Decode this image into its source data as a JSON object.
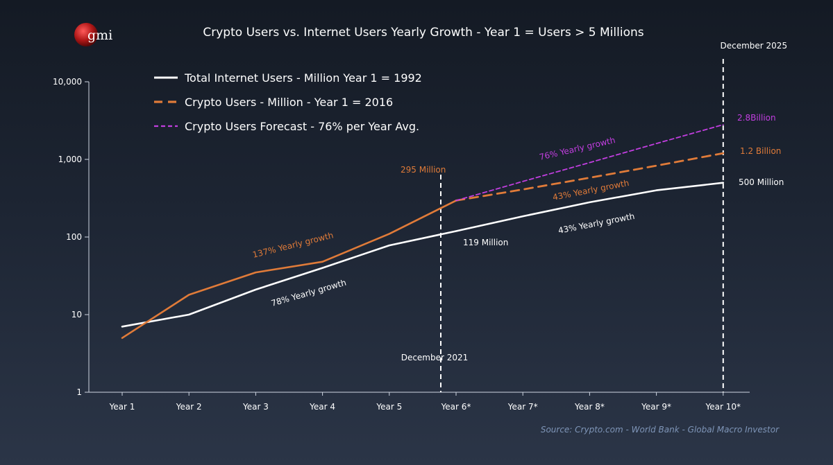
{
  "logo": {
    "text": "gmi"
  },
  "chart_data": {
    "type": "line",
    "title": "Crypto Users vs. Internet Users Yearly Growth - Year 1 = Users > 5 Millions",
    "categories": [
      "Year 1",
      "Year 2",
      "Year 3",
      "Year 4",
      "Year 5",
      "Year 6*",
      "Year 7*",
      "Year 8*",
      "Year 9*",
      "Year 10*"
    ],
    "y_ticks": [
      1,
      10,
      100,
      1000,
      10000
    ],
    "y_tick_labels": [
      "1",
      "10",
      "100",
      "1,000",
      "10,000"
    ],
    "ylim": [
      1,
      10000
    ],
    "y_scale": "log",
    "legend_position": "top-left",
    "series": [
      {
        "name": "Total Internet Users - Million Year 1 = 1992",
        "color": "#ffffff",
        "style": "solid",
        "values": [
          7,
          10,
          21,
          40,
          78,
          119,
          185,
          280,
          400,
          500
        ]
      },
      {
        "name": "Crypto Users - Million - Year 1 = 2016",
        "color": "#e07b39",
        "style": "solid",
        "values": [
          5,
          18,
          35,
          48,
          110,
          295,
          null,
          null,
          null,
          null
        ]
      },
      {
        "name": "",
        "color": "#e07b39",
        "style": "dashed",
        "values": [
          null,
          null,
          null,
          null,
          null,
          295,
          410,
          580,
          830,
          1200
        ]
      },
      {
        "name": "Crypto Users Forecast - 76% per Year Avg.",
        "color": "#c23ee0",
        "style": "dotted",
        "values": [
          null,
          null,
          null,
          null,
          null,
          295,
          520,
          910,
          1600,
          2800
        ]
      }
    ],
    "legend": [
      {
        "label": "Total Internet Users - Million Year 1 = 1992",
        "color": "#ffffff",
        "style": "solid"
      },
      {
        "label": "Crypto Users - Million - Year 1 = 2016",
        "color": "#e07b39",
        "style": "dashed"
      },
      {
        "label": "Crypto Users Forecast - 76% per Year Avg.",
        "color": "#c23ee0",
        "style": "dotted"
      }
    ],
    "vertical_markers": [
      {
        "x_index": 5,
        "label": "December 2021"
      },
      {
        "x_index": 9,
        "label": "December 2025"
      }
    ],
    "annotations": [
      {
        "text": "137% Yearly growth",
        "color": "#e07b39"
      },
      {
        "text": "78% Yearly growth",
        "color": "#ffffff"
      },
      {
        "text": "295 Million",
        "color": "#e07b39"
      },
      {
        "text": "119 Million",
        "color": "#ffffff"
      },
      {
        "text": "76% Yearly growth",
        "color": "#c23ee0"
      },
      {
        "text": "43% Yearly growth",
        "color": "#e07b39"
      },
      {
        "text": "43% Yearly growth",
        "color": "#ffffff"
      },
      {
        "text": "2.8Billion",
        "color": "#c23ee0"
      },
      {
        "text": "1.2 Billion",
        "color": "#e07b39"
      },
      {
        "text": "500 Million",
        "color": "#ffffff"
      }
    ],
    "source": "Source: Crypto.com - World Bank - Global Macro Investor"
  }
}
